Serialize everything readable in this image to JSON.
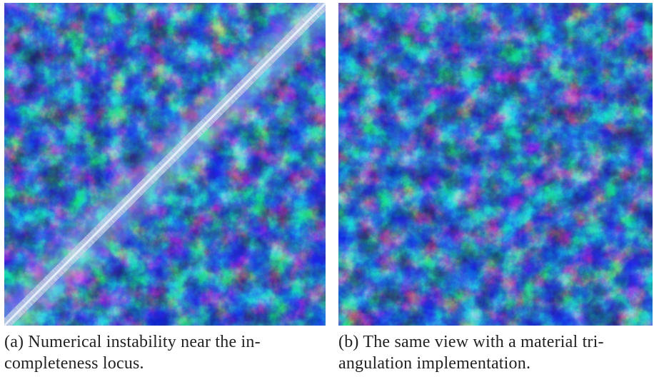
{
  "figure": {
    "colors": {
      "deep": "#15206a",
      "mid": "#2f6fbd",
      "light": "#dff2da"
    },
    "panels": [
      {
        "label": "(a)",
        "caption_line1": "(a) Numerical instability near the in-",
        "caption_line2": "completeness locus."
      },
      {
        "label": "(b)",
        "caption_line1": "(b) The same view with a material tri-",
        "caption_line2": "angulation implementation."
      }
    ]
  }
}
